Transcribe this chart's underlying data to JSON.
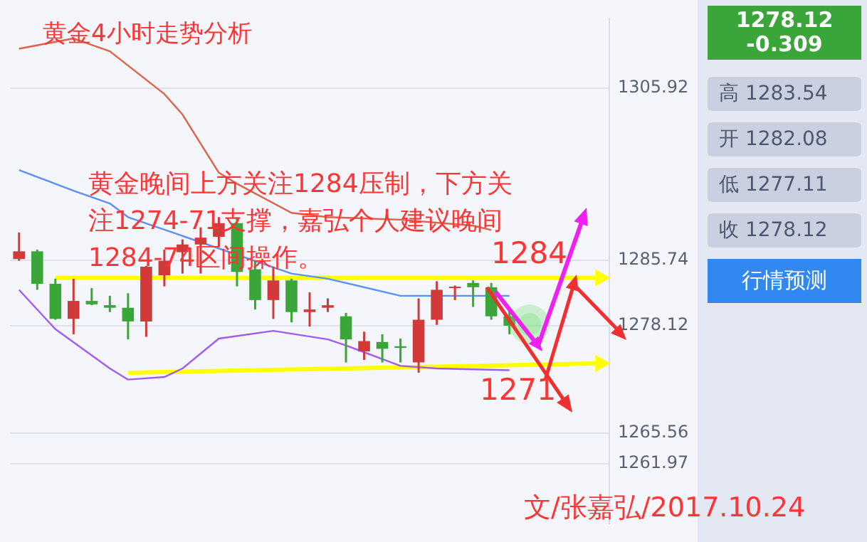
{
  "chart_data": [
    {
      "type": "candlestick",
      "title": "黄金4小时走势分析",
      "categories": [
        null,
        null,
        null,
        null,
        null,
        null,
        null,
        null,
        null,
        null,
        null,
        null,
        null,
        null,
        null,
        null,
        null,
        null,
        null,
        null,
        null,
        null,
        null,
        null,
        null,
        null,
        null,
        null,
        null,
        null,
        null,
        null,
        null
      ],
      "ohlc": [
        [
          1285.9,
          1289.0,
          1285.7,
          1286.8
        ],
        [
          1286.8,
          1287.0,
          1282.3,
          1283.0
        ],
        [
          1283.0,
          1283.6,
          1278.8,
          1278.9
        ],
        [
          1278.9,
          1283.6,
          1277.1,
          1281.0
        ],
        [
          1281.0,
          1282.5,
          1280.5,
          1280.6
        ],
        [
          1280.5,
          1281.6,
          1279.7,
          1280.2
        ],
        [
          1280.2,
          1281.9,
          1276.5,
          1278.6
        ],
        [
          1278.6,
          1285.1,
          1276.8,
          1285.0
        ],
        [
          1284.0,
          1287.0,
          1282.7,
          1285.7
        ],
        [
          1286.7,
          1288.2,
          1284.2,
          1287.6
        ],
        [
          1287.6,
          1289.6,
          1284.2,
          1288.4
        ],
        [
          1288.5,
          1290.8,
          1287.3,
          1290.1
        ],
        [
          1290.1,
          1290.8,
          1282.7,
          1284.4
        ],
        [
          1284.7,
          1285.7,
          1280.0,
          1281.1
        ],
        [
          1281.1,
          1285.0,
          1278.9,
          1283.4
        ],
        [
          1283.4,
          1283.6,
          1278.5,
          1279.7
        ],
        [
          1279.7,
          1282.0,
          1278.0,
          1280.0
        ],
        [
          1280.2,
          1281.3,
          1279.7,
          1280.5
        ],
        [
          1279.2,
          1279.6,
          1273.8,
          1276.5
        ],
        [
          1275.1,
          1277.4,
          1274.1,
          1276.3
        ],
        [
          1276.2,
          1277.1,
          1273.8,
          1275.4
        ],
        [
          1275.7,
          1276.6,
          1273.8,
          1275.5
        ],
        [
          1273.8,
          1281.3,
          1272.6,
          1278.8
        ],
        [
          1278.8,
          1283.3,
          1278.2,
          1282.3
        ],
        [
          1282.5,
          1282.8,
          1281.1,
          1282.6
        ],
        [
          1283.1,
          1283.4,
          1280.3,
          1282.6
        ],
        [
          1282.6,
          1283.1,
          1278.8,
          1279.2
        ],
        [
          1279.2,
          1279.8,
          1277.1,
          1278.1
        ],
        null,
        null,
        null,
        null,
        null
      ],
      "colors": [
        "#d23a3a",
        "#3aa63a",
        "#3aa63a",
        "#d23a3a",
        "#3aa63a",
        "#3aa63a",
        "#3aa63a",
        "#d23a3a",
        "#d23a3a",
        "#d23a3a",
        "#d23a3a",
        "#d23a3a",
        "#3aa63a",
        "#3aa63a",
        "#d23a3a",
        "#3aa63a",
        "#d23a3a",
        "#d23a3a",
        "#3aa63a",
        "#d23a3a",
        "#3aa63a",
        "#3aa63a",
        "#d23a3a",
        "#d23a3a",
        "#d23a3a",
        "#3aa63a",
        "#3aa63a",
        "#3aa63a",
        null,
        null,
        null,
        null,
        null
      ],
      "series": [
        {
          "type": "line",
          "color": "#e06048",
          "values": [
            1310.5,
            null,
            null,
            1311.7,
            null,
            1310.2,
            null,
            null,
            1305.2,
            1302.8,
            null,
            1296.0,
            1294.7,
            null,
            null,
            1291.3,
            null,
            1290.8,
            null,
            null,
            null,
            1290.5,
            null,
            null,
            null,
            1289.8,
            1289.3,
            null,
            null,
            null,
            null,
            null,
            null
          ]
        },
        {
          "type": "line",
          "color": "#5b8ff9",
          "values": [
            1296.3,
            null,
            null,
            1293.9,
            null,
            1292.4,
            1290.8,
            null,
            null,
            null,
            null,
            null,
            null,
            null,
            null,
            1284.2,
            null,
            1283.6,
            null,
            null,
            null,
            1281.6,
            null,
            null,
            null,
            null,
            null,
            1281.6,
            null,
            null,
            null,
            null,
            null
          ]
        },
        {
          "type": "line",
          "color": "#a05cf0",
          "values": [
            1282.3,
            null,
            1277.7,
            null,
            null,
            1273.1,
            1271.8,
            null,
            1272.1,
            1273.1,
            null,
            1276.6,
            null,
            null,
            1277.5,
            null,
            null,
            1276.5,
            1275.8,
            null,
            null,
            1273.4,
            null,
            1273.1,
            null,
            null,
            null,
            1272.9,
            null,
            null,
            null,
            null,
            null
          ]
        },
        {
          "type": "line",
          "color": "#ffff00",
          "values": [
            null,
            null,
            1283.7,
            null,
            null,
            null,
            null,
            null,
            null,
            null,
            null,
            null,
            null,
            null,
            null,
            null,
            null,
            null,
            null,
            null,
            null,
            null,
            null,
            null,
            null,
            null,
            null,
            null,
            null,
            null,
            null,
            null,
            1283.7
          ]
        },
        {
          "type": "line",
          "color": "#ffff00",
          "values": [
            null,
            null,
            null,
            null,
            null,
            null,
            1272.6,
            null,
            null,
            null,
            null,
            null,
            null,
            null,
            null,
            null,
            null,
            null,
            null,
            null,
            null,
            null,
            null,
            null,
            null,
            null,
            null,
            null,
            null,
            null,
            null,
            null,
            1273.7
          ]
        }
      ],
      "ylim": [
        1255,
        1314
      ],
      "yticks": [
        1305.92,
        1285.74,
        1278.12,
        1265.56,
        1261.97
      ],
      "grid": "y",
      "tick_labels": "y",
      "annotations": [
        "黄金晚间上方关注1284压制，下方关注1274-71支撑，嘉弘个人建议晚间1284-74区间操作。",
        "1284",
        "1271",
        "文/张嘉弘/2017.10.24"
      ]
    },
    {
      "type": "other",
      "annotations": [
        "1278.12",
        "-0.309",
        "高 1283.54",
        "开 1282.08",
        "低 1277.11",
        "收 1278.12",
        "行情预测"
      ]
    }
  ]
}
